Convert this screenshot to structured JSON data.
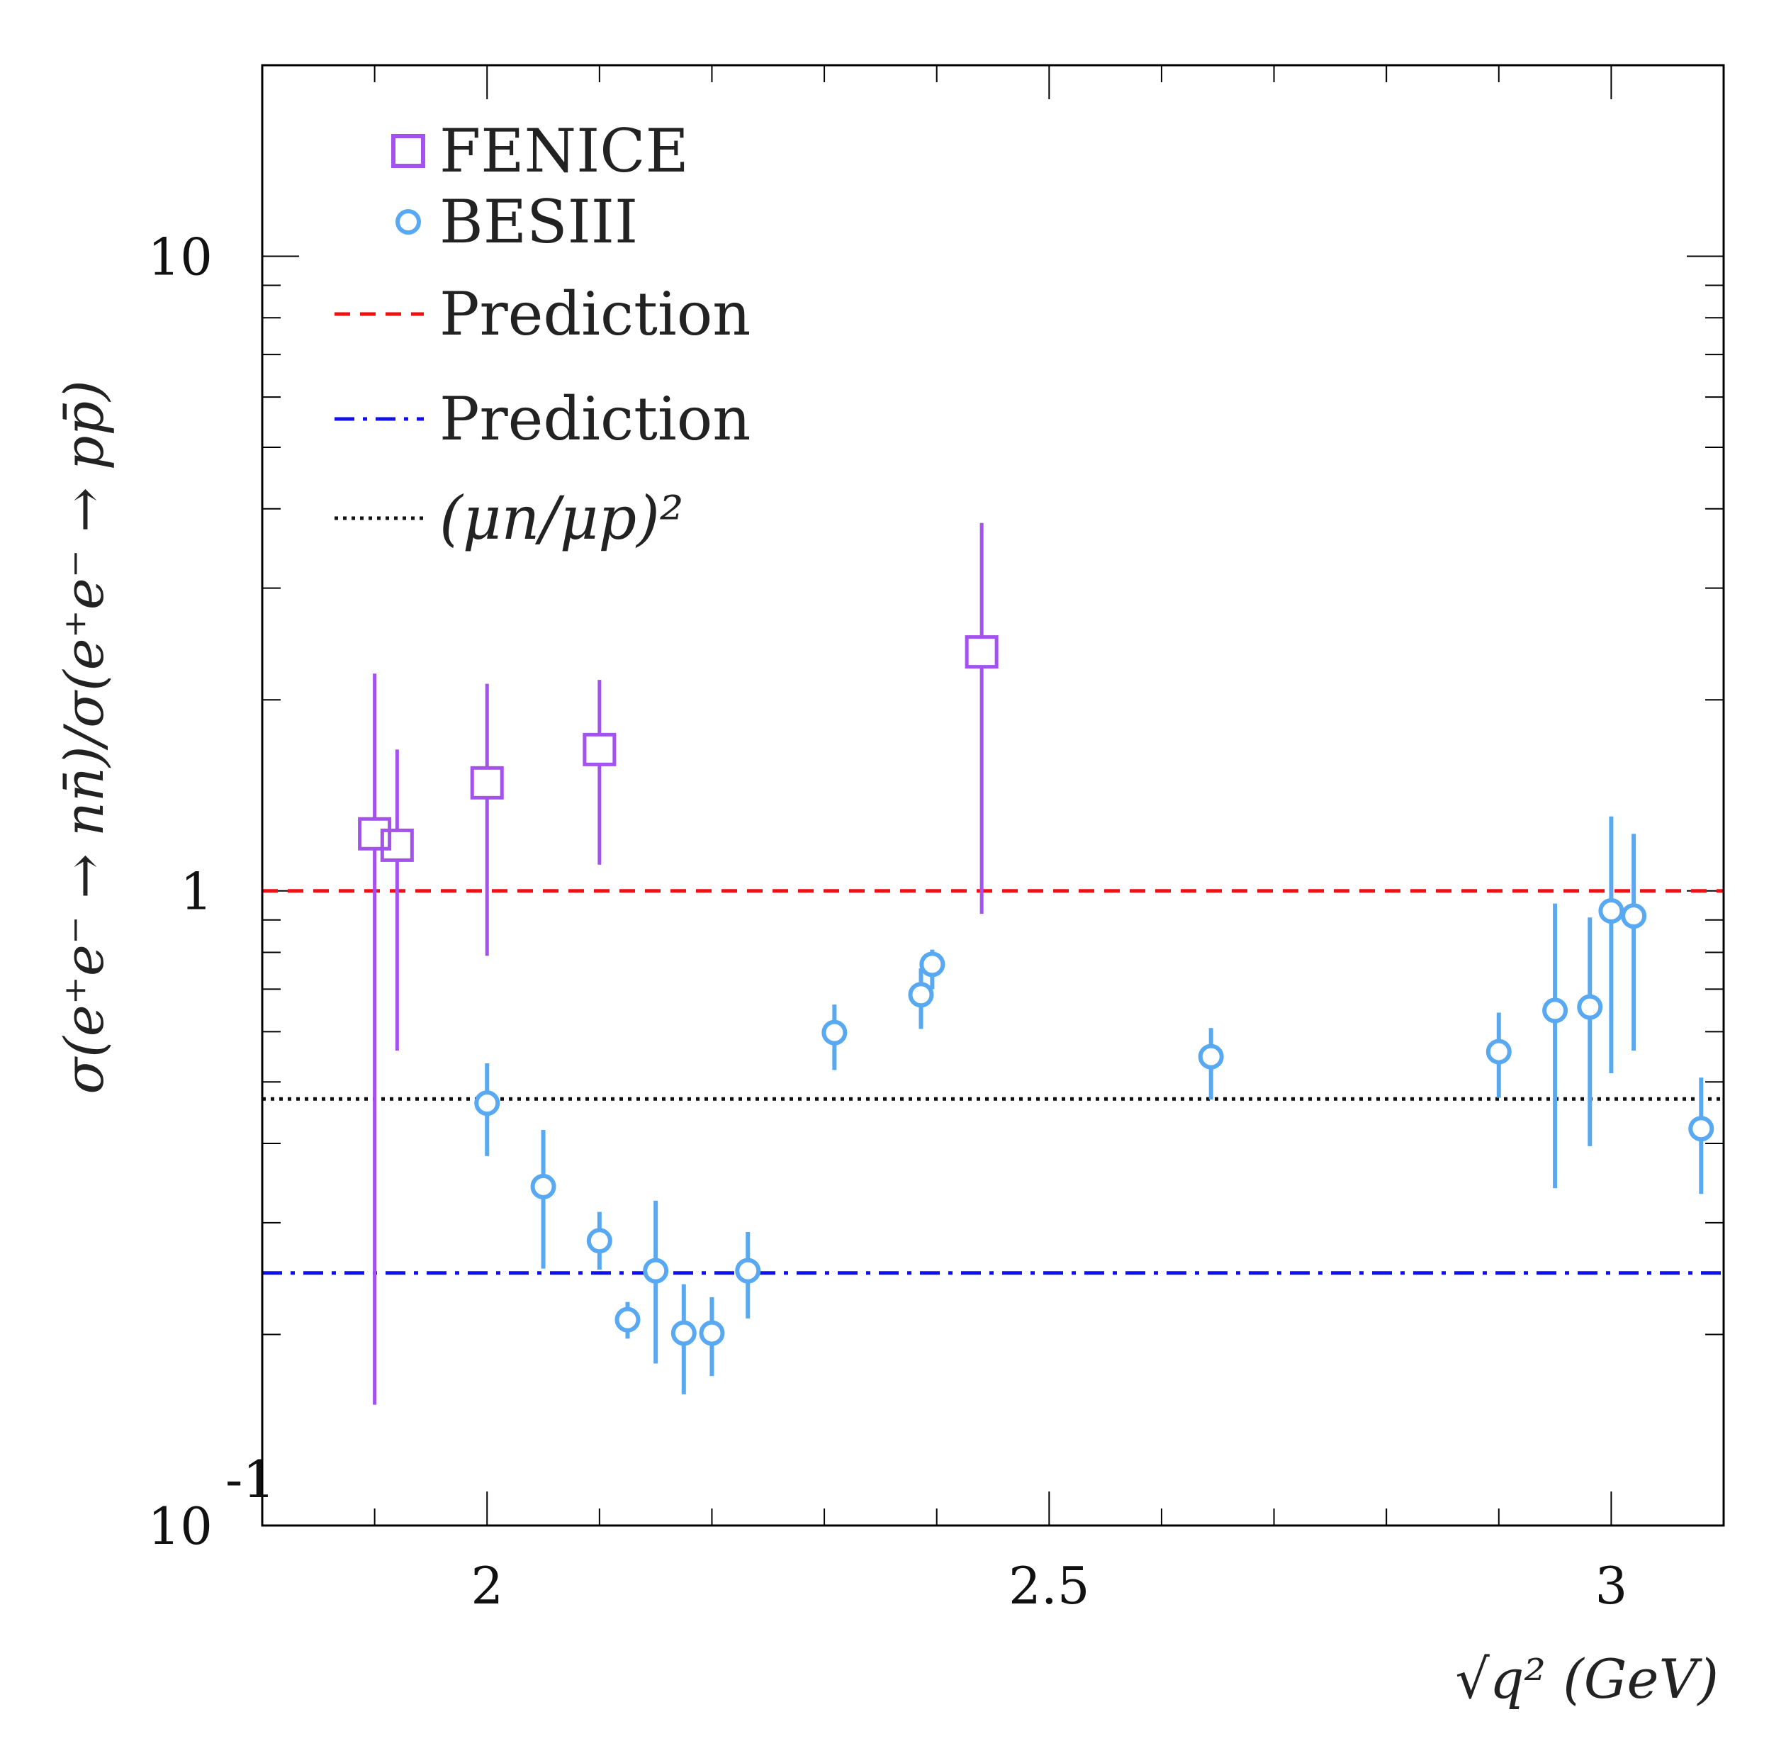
{
  "chart_data": {
    "type": "scatter",
    "title": "",
    "xlabel": "√q² (GeV)",
    "ylabel": "σ(e⁺e⁻ → nn̄)/σ(e⁺e⁻ → pp̄)",
    "xlim": [
      1.8,
      3.1
    ],
    "ylim": [
      0.1,
      20
    ],
    "yscale": "log",
    "x_ticks": [
      {
        "value": 2,
        "label": "2"
      },
      {
        "value": 2.5,
        "label": "2.5"
      },
      {
        "value": 3,
        "label": "3"
      }
    ],
    "y_ticks": [
      {
        "value": 0.1,
        "label": "10",
        "sup": "-1"
      },
      {
        "value": 1,
        "label": "1",
        "sup": ""
      },
      {
        "value": 10,
        "label": "10",
        "sup": ""
      }
    ],
    "series": [
      {
        "name": "FENICE",
        "marker": "open-square",
        "color": "#a352ee",
        "points": [
          {
            "x": 1.9,
            "y": 1.23,
            "lo": 0.155,
            "hi": 2.2
          },
          {
            "x": 1.92,
            "y": 1.18,
            "lo": 0.56,
            "hi": 1.67
          },
          {
            "x": 2.0,
            "y": 1.48,
            "lo": 0.79,
            "hi": 2.12
          },
          {
            "x": 2.1,
            "y": 1.67,
            "lo": 1.1,
            "hi": 2.15
          },
          {
            "x": 2.44,
            "y": 2.38,
            "lo": 0.92,
            "hi": 3.8
          }
        ]
      },
      {
        "name": "BESIII",
        "marker": "open-circle",
        "color": "#59a9f2",
        "points": [
          {
            "x": 2.0,
            "y": 0.463,
            "lo": 0.382,
            "hi": 0.535
          },
          {
            "x": 2.05,
            "y": 0.342,
            "lo": 0.254,
            "hi": 0.42
          },
          {
            "x": 2.1,
            "y": 0.281,
            "lo": 0.253,
            "hi": 0.312
          },
          {
            "x": 2.125,
            "y": 0.211,
            "lo": 0.197,
            "hi": 0.225
          },
          {
            "x": 2.15,
            "y": 0.252,
            "lo": 0.18,
            "hi": 0.325
          },
          {
            "x": 2.175,
            "y": 0.201,
            "lo": 0.161,
            "hi": 0.24
          },
          {
            "x": 2.2,
            "y": 0.201,
            "lo": 0.172,
            "hi": 0.229
          },
          {
            "x": 2.232,
            "y": 0.252,
            "lo": 0.212,
            "hi": 0.29
          },
          {
            "x": 2.309,
            "y": 0.598,
            "lo": 0.522,
            "hi": 0.662
          },
          {
            "x": 2.386,
            "y": 0.686,
            "lo": 0.606,
            "hi": 0.755
          },
          {
            "x": 2.396,
            "y": 0.766,
            "lo": 0.7,
            "hi": 0.808
          },
          {
            "x": 2.644,
            "y": 0.548,
            "lo": 0.469,
            "hi": 0.608
          },
          {
            "x": 2.9,
            "y": 0.558,
            "lo": 0.472,
            "hi": 0.643
          },
          {
            "x": 2.95,
            "y": 0.648,
            "lo": 0.34,
            "hi": 0.955
          },
          {
            "x": 2.981,
            "y": 0.656,
            "lo": 0.396,
            "hi": 0.908
          },
          {
            "x": 3.0,
            "y": 0.93,
            "lo": 0.516,
            "hi": 1.31
          },
          {
            "x": 3.02,
            "y": 0.913,
            "lo": 0.56,
            "hi": 1.23
          },
          {
            "x": 3.08,
            "y": 0.422,
            "lo": 0.333,
            "hi": 0.508
          }
        ]
      }
    ],
    "reference_lines": [
      {
        "name": "Prediction",
        "y": 1.0,
        "style": "dashed",
        "color": "#ee1111"
      },
      {
        "name": "Prediction",
        "y": 0.25,
        "style": "dash-dot",
        "color": "#1010ee"
      },
      {
        "name": "(μn/μp)²",
        "y": 0.47,
        "style": "dotted",
        "color": "#111111"
      }
    ],
    "legend": {
      "position": "top-left",
      "entries": [
        {
          "label": "FENICE",
          "kind": "open-square",
          "color": "#a352ee"
        },
        {
          "label": "BESIII",
          "kind": "open-circle",
          "color": "#59a9f2"
        },
        {
          "label": "Prediction",
          "kind": "dashed",
          "color": "#ee1111"
        },
        {
          "label": "Prediction",
          "kind": "dash-dot",
          "color": "#1010ee"
        },
        {
          "label": "(μn/μp)²",
          "kind": "dotted",
          "color": "#111111"
        }
      ]
    }
  }
}
